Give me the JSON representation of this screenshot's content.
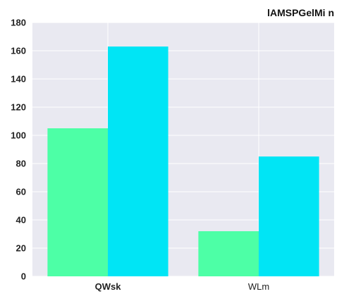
{
  "chart_data": {
    "type": "bar",
    "title": "lAMSPGelMi n",
    "xlabel": "",
    "ylabel": "",
    "categories": [
      "QWsk",
      "WLm"
    ],
    "category_label_bold": [
      true,
      false
    ],
    "series": [
      {
        "values": [
          105,
          32
        ],
        "color": "#4dffa6"
      },
      {
        "values": [
          163,
          85
        ],
        "color": "#00e5f5"
      }
    ],
    "ylim": [
      0,
      180
    ],
    "yticks": [
      0,
      20,
      40,
      60,
      80,
      100,
      120,
      140,
      160,
      180
    ],
    "grid": true,
    "background_color": "#e9e9f1",
    "grid_color": "#ffffff",
    "legend": "none"
  }
}
